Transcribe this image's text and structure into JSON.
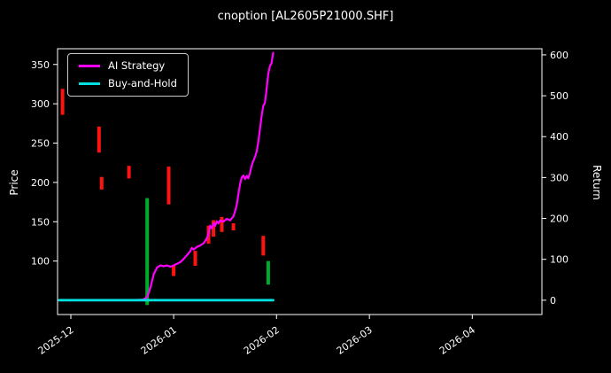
{
  "chart_data": {
    "type": "line",
    "title": "cnoption [AL2605P21000.SHF]",
    "background": "#000000",
    "text_color": "#ffffff",
    "ylabel_left": "Price",
    "ylabel_right": "Return",
    "x_unit": "days since 2025-12-01",
    "xlim": [
      -4,
      142
    ],
    "x_ticks": [
      0,
      31,
      62,
      90,
      121
    ],
    "x_tick_labels": [
      "2025-12",
      "2026-01",
      "2026-02",
      "2026-03",
      "2026-04"
    ],
    "left_ylim": [
      32,
      370
    ],
    "left_yticks": [
      100,
      150,
      200,
      250,
      300,
      350
    ],
    "right_ylim": [
      -35,
      615
    ],
    "right_yticks": [
      0,
      100,
      200,
      300,
      400,
      500,
      600
    ],
    "grid": false,
    "legend_position": "upper-left",
    "series": [
      {
        "name": "AI Strategy",
        "color": "#ff00ff",
        "axis": "right",
        "width": 2.2,
        "points": [
          [
            -3.5,
            0
          ],
          [
            0,
            0
          ],
          [
            5,
            0
          ],
          [
            10,
            0
          ],
          [
            15,
            0
          ],
          [
            18,
            0
          ],
          [
            21,
            1
          ],
          [
            22,
            2
          ],
          [
            23,
            8
          ],
          [
            24,
            31
          ],
          [
            25,
            64
          ],
          [
            26,
            80
          ],
          [
            27,
            85
          ],
          [
            28,
            83
          ],
          [
            29,
            85
          ],
          [
            30,
            82
          ],
          [
            31,
            85
          ],
          [
            32,
            89
          ],
          [
            33,
            93
          ],
          [
            34,
            101
          ],
          [
            35,
            110
          ],
          [
            36,
            120
          ],
          [
            36.5,
            128
          ],
          [
            37,
            124
          ],
          [
            38,
            130
          ],
          [
            39,
            134
          ],
          [
            40,
            139
          ],
          [
            41,
            151
          ],
          [
            41.5,
            163
          ],
          [
            42,
            182
          ],
          [
            42.5,
            176
          ],
          [
            43,
            188
          ],
          [
            43.5,
            182
          ],
          [
            44,
            193
          ],
          [
            44.5,
            188
          ],
          [
            45,
            195
          ],
          [
            46,
            192
          ],
          [
            47,
            199
          ],
          [
            48,
            195
          ],
          [
            49,
            205
          ],
          [
            49.5,
            217
          ],
          [
            50,
            232
          ],
          [
            50.5,
            259
          ],
          [
            51,
            284
          ],
          [
            51.5,
            300
          ],
          [
            52,
            305
          ],
          [
            52.5,
            296
          ],
          [
            53,
            304
          ],
          [
            53.5,
            298
          ],
          [
            54,
            311
          ],
          [
            54.5,
            329
          ],
          [
            55,
            340
          ],
          [
            55.5,
            350
          ],
          [
            56,
            363
          ],
          [
            56.5,
            387
          ],
          [
            57,
            417
          ],
          [
            57.5,
            450
          ],
          [
            58,
            475
          ],
          [
            58.5,
            483
          ],
          [
            59,
            514
          ],
          [
            59.5,
            553
          ],
          [
            60,
            572
          ],
          [
            60.5,
            580
          ],
          [
            61,
            605
          ]
        ]
      },
      {
        "name": "Buy-and-Hold",
        "color": "#00e0e0",
        "axis": "right",
        "width": 2.8,
        "points": [
          [
            -3.5,
            0
          ],
          [
            61,
            0
          ]
        ]
      }
    ],
    "price_bars": [
      {
        "x": -2.5,
        "low": 286,
        "high": 319,
        "color": "#ff1212"
      },
      {
        "x": 8.5,
        "low": 238,
        "high": 271,
        "color": "#ff1212"
      },
      {
        "x": 9.3,
        "low": 191,
        "high": 207,
        "color": "#ff1212"
      },
      {
        "x": 17.5,
        "low": 205,
        "high": 221,
        "color": "#ff1212"
      },
      {
        "x": 23,
        "low": 44,
        "high": 180,
        "color": "#00aa2a"
      },
      {
        "x": 29.5,
        "low": 172,
        "high": 220,
        "color": "#ff1212"
      },
      {
        "x": 31,
        "low": 81,
        "high": 94,
        "color": "#ff1212"
      },
      {
        "x": 37.5,
        "low": 94,
        "high": 113,
        "color": "#ff1212"
      },
      {
        "x": 41.5,
        "low": 122,
        "high": 145,
        "color": "#ff1212"
      },
      {
        "x": 43,
        "low": 131,
        "high": 152,
        "color": "#ff1212"
      },
      {
        "x": 45.5,
        "low": 137,
        "high": 156,
        "color": "#ff1212"
      },
      {
        "x": 49,
        "low": 139,
        "high": 148,
        "color": "#ff1212"
      },
      {
        "x": 58,
        "low": 107,
        "high": 132,
        "color": "#ff1212"
      },
      {
        "x": 59.5,
        "low": 70,
        "high": 100,
        "color": "#00aa2a"
      }
    ]
  }
}
